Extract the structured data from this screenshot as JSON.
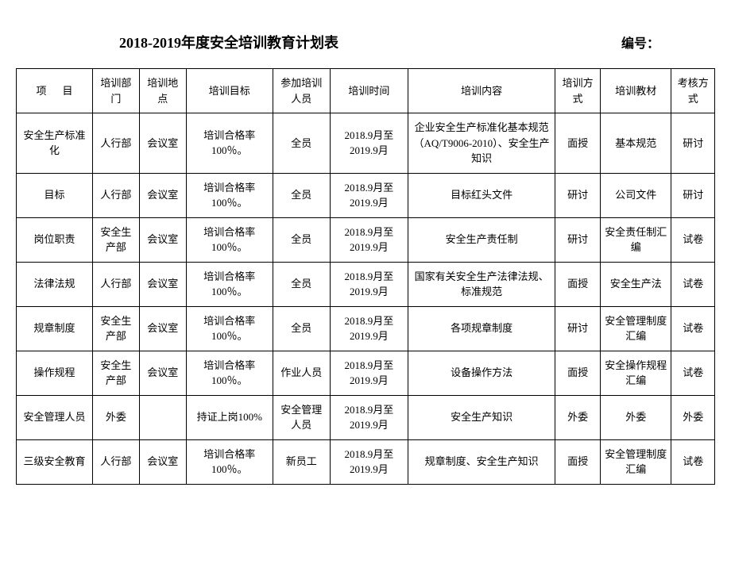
{
  "header": {
    "title": "2018-2019年度安全培训教育计划表",
    "doc_number_label": "编号：",
    "doc_number_value": ""
  },
  "columns": {
    "project": "项目",
    "dept": "培训部门",
    "location": "培训地点",
    "goal": "培训目标",
    "attendees": "参加培训人员",
    "time": "培训时间",
    "content": "培训内容",
    "method": "培训方式",
    "material": "培训教材",
    "assessment": "考核方式"
  },
  "rows": [
    {
      "project": "安全生产标准化",
      "dept": "人行部",
      "location": "会议室",
      "goal": "培训合格率100％。",
      "attendees": "全员",
      "time": "2018.9月至2019.9月",
      "content": "企业安全生产标准化基本规范（AQ/T9006-2010）、安全生产知识",
      "method": "面授",
      "material": "基本规范",
      "assessment": "研讨"
    },
    {
      "project": "目标",
      "dept": "人行部",
      "location": "会议室",
      "goal": "培训合格率100％。",
      "attendees": "全员",
      "time": "2018.9月至2019.9月",
      "content": "目标红头文件",
      "method": "研讨",
      "material": "公司文件",
      "assessment": "研讨"
    },
    {
      "project": "岗位职责",
      "dept": "安全生产部",
      "location": "会议室",
      "goal": "培训合格率100％。",
      "attendees": "全员",
      "time": "2018.9月至2019.9月",
      "content": "安全生产责任制",
      "method": "研讨",
      "material": "安全责任制汇编",
      "assessment": "试卷"
    },
    {
      "project": "法律法规",
      "dept": "人行部",
      "location": "会议室",
      "goal": "培训合格率100％。",
      "attendees": "全员",
      "time": "2018.9月至2019.9月",
      "content": "国家有关安全生产法律法规、标准规范",
      "method": "面授",
      "material": "安全生产法",
      "assessment": "试卷"
    },
    {
      "project": "规章制度",
      "dept": "安全生产部",
      "location": "会议室",
      "goal": "培训合格率100％。",
      "attendees": "全员",
      "time": "2018.9月至2019.9月",
      "content": "各项规章制度",
      "method": "研讨",
      "material": "安全管理制度汇编",
      "assessment": "试卷"
    },
    {
      "project": "操作规程",
      "dept": "安全生产部",
      "location": "会议室",
      "goal": "培训合格率100％。",
      "attendees": "作业人员",
      "time": "2018.9月至2019.9月",
      "content": "设备操作方法",
      "method": "面授",
      "material": "安全操作规程汇编",
      "assessment": "试卷"
    },
    {
      "project": "安全管理人员",
      "dept": "外委",
      "location": "",
      "goal": "持证上岗100%",
      "attendees": "安全管理人员",
      "time": "2018.9月至2019.9月",
      "content": "安全生产知识",
      "method": "外委",
      "material": "外委",
      "assessment": "外委"
    },
    {
      "project": "三级安全教育",
      "dept": "人行部",
      "location": "会议室",
      "goal": "培训合格率100％。",
      "attendees": "新员工",
      "time": "2018.9月至2019.9月",
      "content": "规章制度、安全生产知识",
      "method": "面授",
      "material": "安全管理制度汇编",
      "assessment": "试卷"
    }
  ]
}
